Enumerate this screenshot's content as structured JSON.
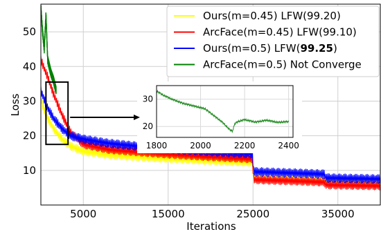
{
  "chart_data": {
    "type": "line",
    "title": "",
    "xlabel": "Iterations",
    "ylabel": "Loss",
    "xlim": [
      0,
      40000
    ],
    "ylim": [
      0,
      58
    ],
    "xticks": [
      5000,
      15000,
      25000,
      35000
    ],
    "xtick_labels": [
      "5000",
      "15000",
      "25000",
      "35000"
    ],
    "yticks": [
      10,
      20,
      30,
      40,
      50
    ],
    "ytick_labels": [
      "10",
      "20",
      "30",
      "40",
      "50"
    ],
    "grid": true,
    "legend_position": "top-right",
    "series": [
      {
        "name_plain": "Ours(m=0.45) LFW(",
        "name_bold": "",
        "name_suffix": "99.20)",
        "color": "#ffff00",
        "band_half_width": 1.2,
        "x": [
          0,
          300,
          800,
          1500,
          2500,
          3500,
          5000,
          8000,
          12000,
          16000,
          20000,
          24900,
          25100,
          30000,
          33400,
          33600,
          38000,
          40000
        ],
        "y": [
          31,
          28,
          25,
          22,
          19,
          17,
          15.5,
          14.5,
          13.8,
          13.3,
          12.8,
          12.3,
          7.6,
          7.2,
          6.9,
          6.2,
          6.0,
          5.9
        ]
      },
      {
        "name_plain": "ArcFace(m=0.45) LFW(",
        "name_bold": "",
        "name_suffix": "99.10)",
        "color": "#ff0000",
        "band_half_width": 1.2,
        "x": [
          0,
          300,
          800,
          1500,
          2500,
          3500,
          5000,
          8000,
          12000,
          16000,
          20000,
          24900,
          25100,
          30000,
          33400,
          33600,
          38000,
          40000
        ],
        "y": [
          42,
          40,
          37,
          32,
          26,
          21,
          17.5,
          16,
          15.2,
          14.5,
          13.9,
          13.3,
          7.3,
          6.9,
          6.6,
          5.8,
          5.6,
          5.5
        ]
      },
      {
        "name_plain": "Ours(m=0.5) LFW(",
        "name_bold": "99.25",
        "name_suffix": ")",
        "color": "#0000ff",
        "band_half_width": 1.3,
        "x": [
          0,
          300,
          800,
          1500,
          2500,
          3500,
          5000,
          8000,
          12000,
          16000,
          20000,
          24900,
          25100,
          30000,
          33400,
          33600,
          38000,
          40000
        ],
        "y": [
          33,
          31,
          28,
          25,
          22,
          20,
          19,
          17.8,
          16.8,
          16,
          15.4,
          14.8,
          9.6,
          9.2,
          8.9,
          7.8,
          7.6,
          7.5
        ]
      },
      {
        "name_plain": "ArcFace(m=0.5) Not Converge",
        "name_bold": "",
        "name_suffix": "",
        "color": "#008000",
        "band_half_width": 0,
        "x": [
          0,
          200,
          400,
          600,
          800,
          1000,
          1200,
          1500,
          1800
        ],
        "y": [
          57,
          50,
          45,
          55,
          42,
          40,
          38,
          36,
          33
        ]
      }
    ],
    "inset": {
      "xlim": [
        1800,
        2420
      ],
      "ylim": [
        16,
        35
      ],
      "xticks": [
        1800,
        2000,
        2200,
        2400
      ],
      "xtick_labels": [
        "1800",
        "2000",
        "2200",
        "2400"
      ],
      "yticks": [
        20,
        30
      ],
      "ytick_labels": [
        "20",
        "30"
      ],
      "series_color": "#228b22",
      "x": [
        1800,
        1830,
        1870,
        1920,
        1970,
        2020,
        2060,
        2100,
        2130,
        2145,
        2155,
        2170,
        2200,
        2250,
        2300,
        2350,
        2400
      ],
      "y": [
        33,
        31.5,
        30,
        28.5,
        27.5,
        26.5,
        24,
        21.5,
        19,
        18.2,
        21,
        21.8,
        22.5,
        21.6,
        22.3,
        21.5,
        21.8
      ]
    },
    "zoom_box": {
      "x_range": [
        600,
        3200
      ],
      "y_range": [
        17.5,
        35.5
      ]
    }
  }
}
